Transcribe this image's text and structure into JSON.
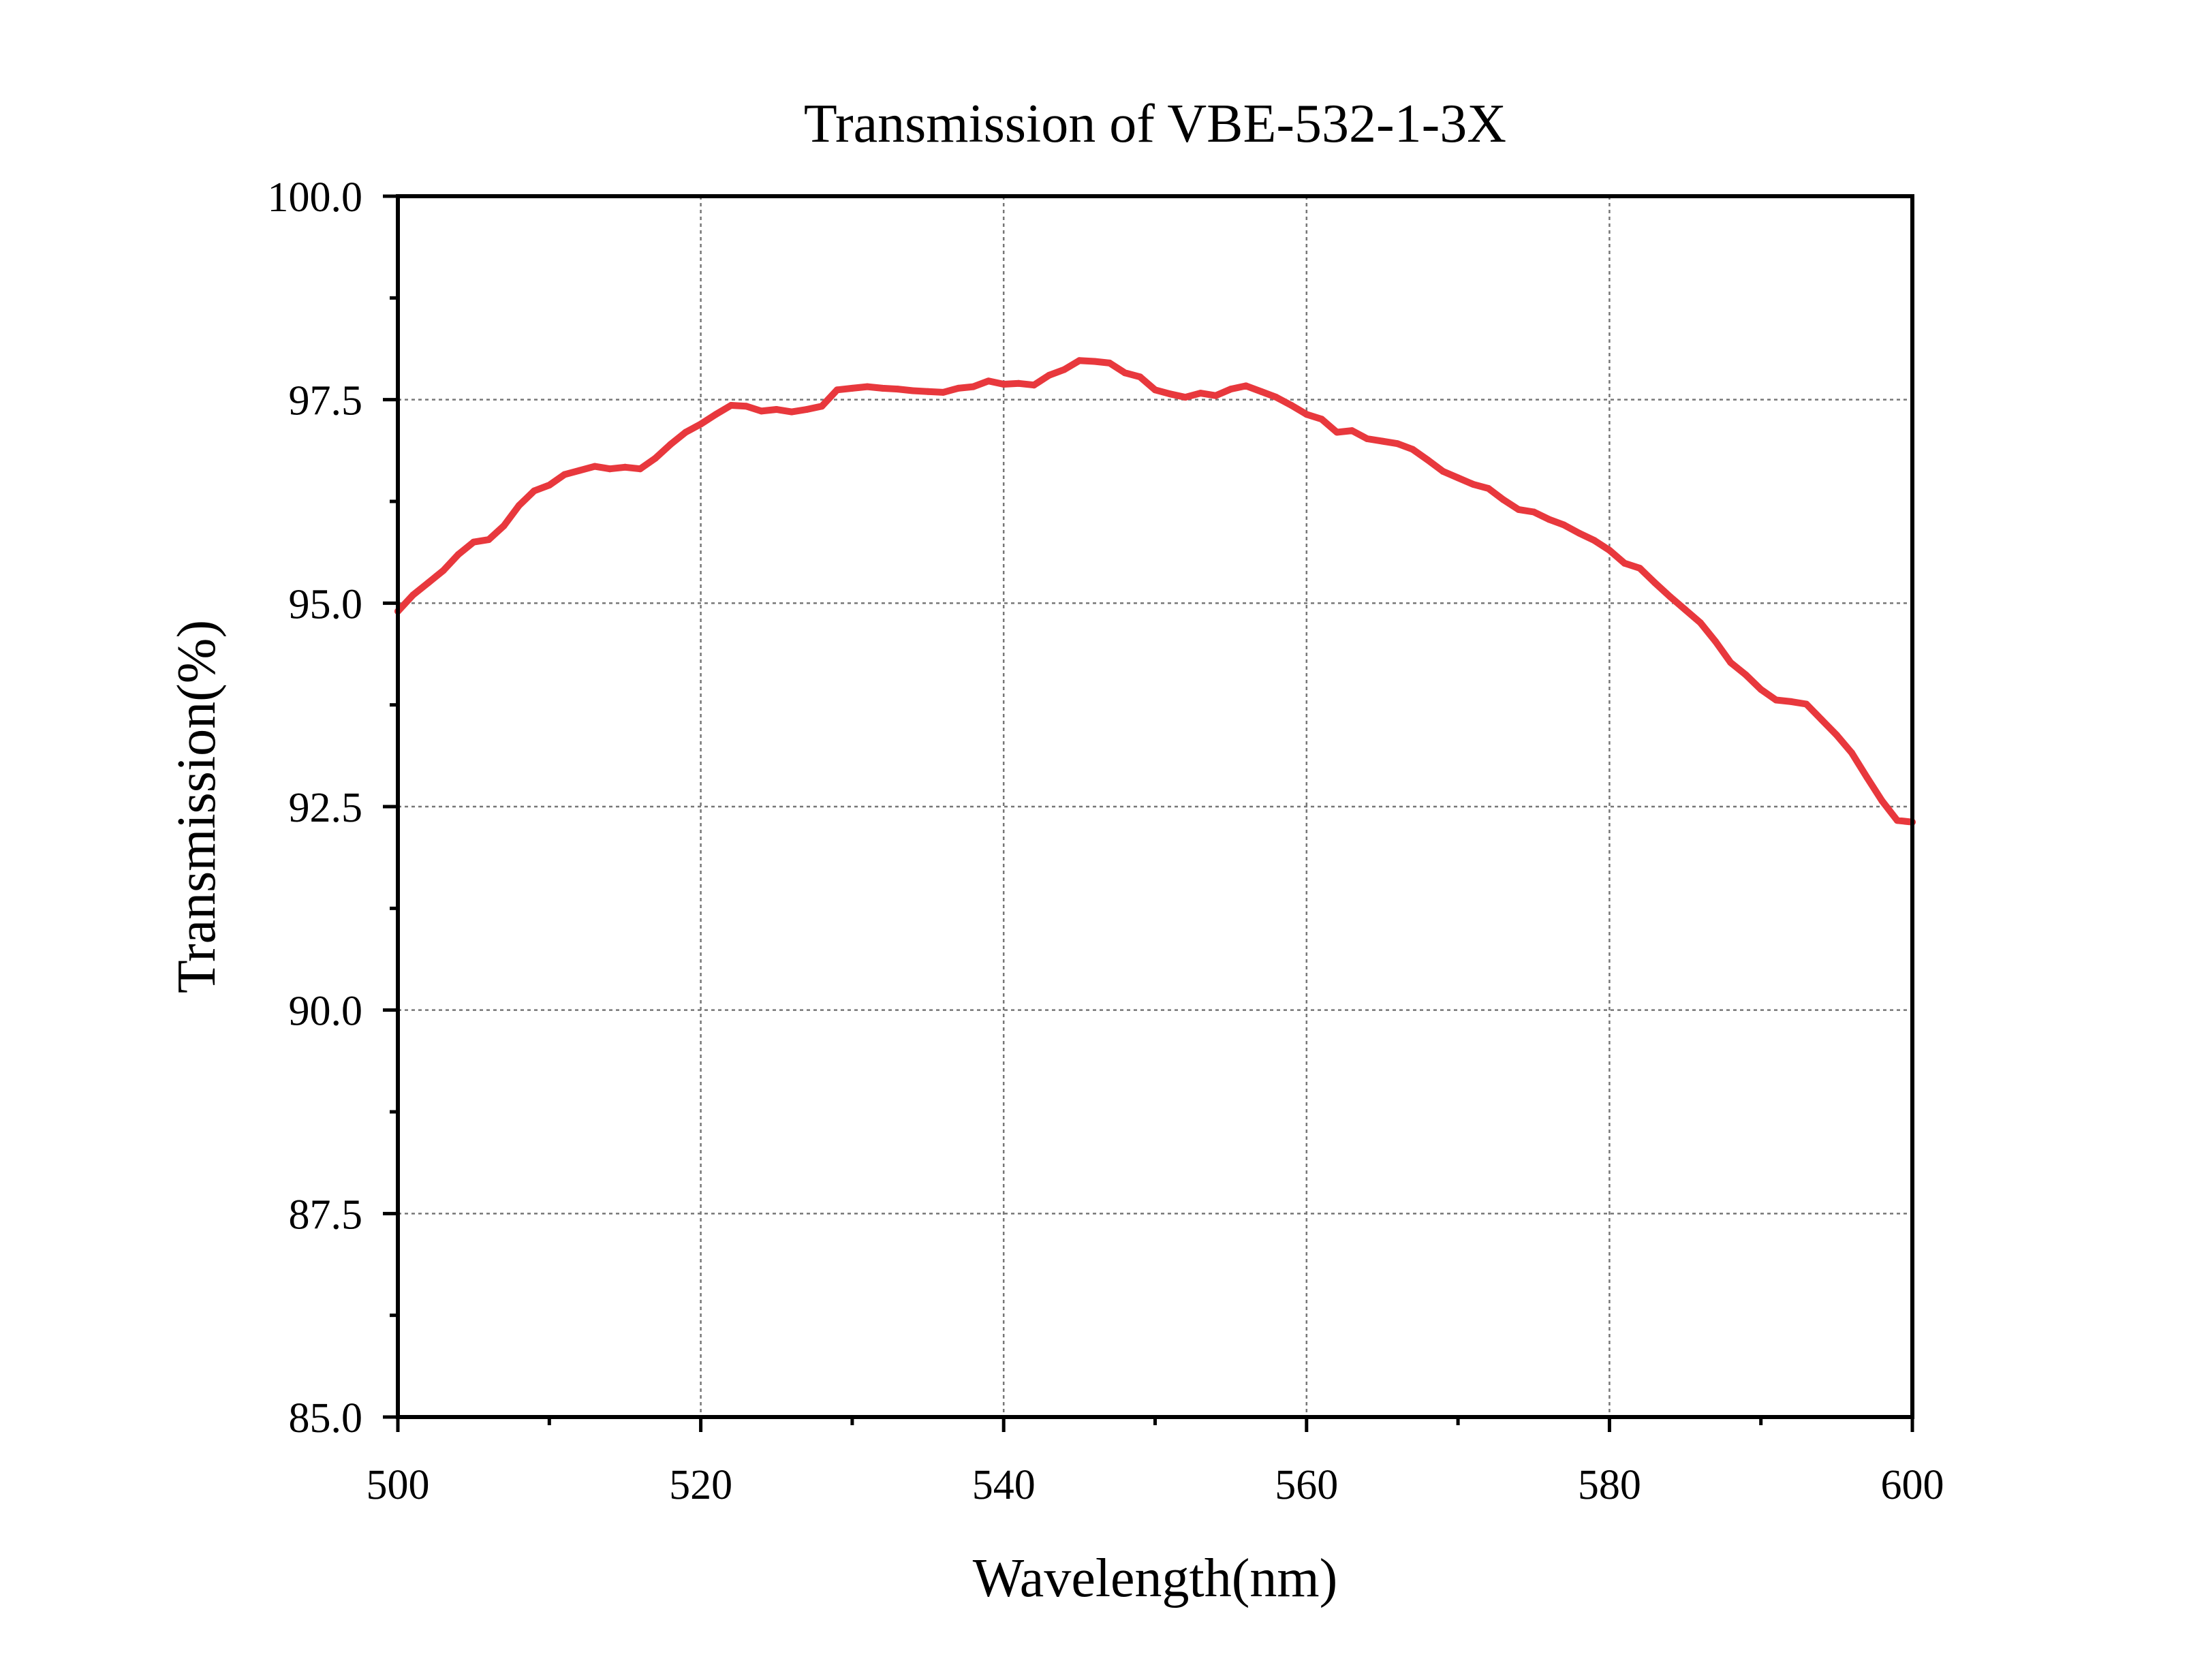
{
  "chart_data": {
    "type": "line",
    "title": "Transmission of VBE-532-1-3X",
    "xlabel": "Wavelength(nm)",
    "ylabel": "Transmission(%)",
    "xlim": [
      500,
      600
    ],
    "ylim": [
      85.0,
      100.0
    ],
    "x_ticks": [
      "500",
      "520",
      "540",
      "560",
      "580",
      "600"
    ],
    "y_ticks": [
      "85.0",
      "87.5",
      "90.0",
      "92.5",
      "95.0",
      "97.5",
      "100.0"
    ],
    "grid": true,
    "grid_style": "dotted",
    "legend": "none",
    "series": [
      {
        "color": "#e8383d",
        "x": [
          500,
          501,
          502,
          503,
          504,
          505,
          506,
          507,
          508,
          509,
          510,
          511,
          512,
          513,
          514,
          515,
          516,
          517,
          518,
          519,
          520,
          521,
          522,
          523,
          524,
          525,
          526,
          527,
          528,
          529,
          530,
          531,
          532,
          533,
          534,
          535,
          536,
          537,
          538,
          539,
          540,
          541,
          542,
          543,
          544,
          545,
          546,
          547,
          548,
          549,
          550,
          551,
          552,
          553,
          554,
          555,
          556,
          557,
          558,
          559,
          560,
          561,
          562,
          563,
          564,
          565,
          566,
          567,
          568,
          569,
          570,
          571,
          572,
          573,
          574,
          575,
          576,
          577,
          578,
          579,
          580,
          581,
          582,
          583,
          584,
          585,
          586,
          587,
          588,
          589,
          590,
          591,
          592,
          593,
          594,
          595,
          596,
          597,
          598,
          599,
          600
        ],
        "y": [
          94.9,
          95.1,
          95.25,
          95.4,
          95.6,
          95.75,
          95.78,
          95.95,
          96.2,
          96.38,
          96.45,
          96.58,
          96.63,
          96.68,
          96.65,
          96.67,
          96.65,
          96.78,
          96.95,
          97.1,
          97.2,
          97.32,
          97.43,
          97.42,
          97.36,
          97.38,
          97.35,
          97.38,
          97.42,
          97.62,
          97.64,
          97.66,
          97.64,
          97.63,
          97.61,
          97.6,
          97.59,
          97.64,
          97.66,
          97.73,
          97.69,
          97.7,
          97.68,
          97.8,
          97.87,
          97.98,
          97.97,
          97.95,
          97.83,
          97.78,
          97.62,
          97.57,
          97.53,
          97.58,
          97.55,
          97.63,
          97.67,
          97.6,
          97.53,
          97.43,
          97.32,
          97.26,
          97.1,
          97.12,
          97.02,
          96.99,
          96.96,
          96.89,
          96.76,
          96.62,
          96.54,
          96.46,
          96.41,
          96.27,
          96.15,
          96.12,
          96.03,
          95.96,
          95.86,
          95.77,
          95.65,
          95.49,
          95.43,
          95.25,
          95.08,
          94.92,
          94.76,
          94.53,
          94.27,
          94.12,
          93.94,
          93.81,
          93.79,
          93.76,
          93.57,
          93.38,
          93.16,
          92.86,
          92.57,
          92.33,
          92.31
        ]
      }
    ]
  }
}
